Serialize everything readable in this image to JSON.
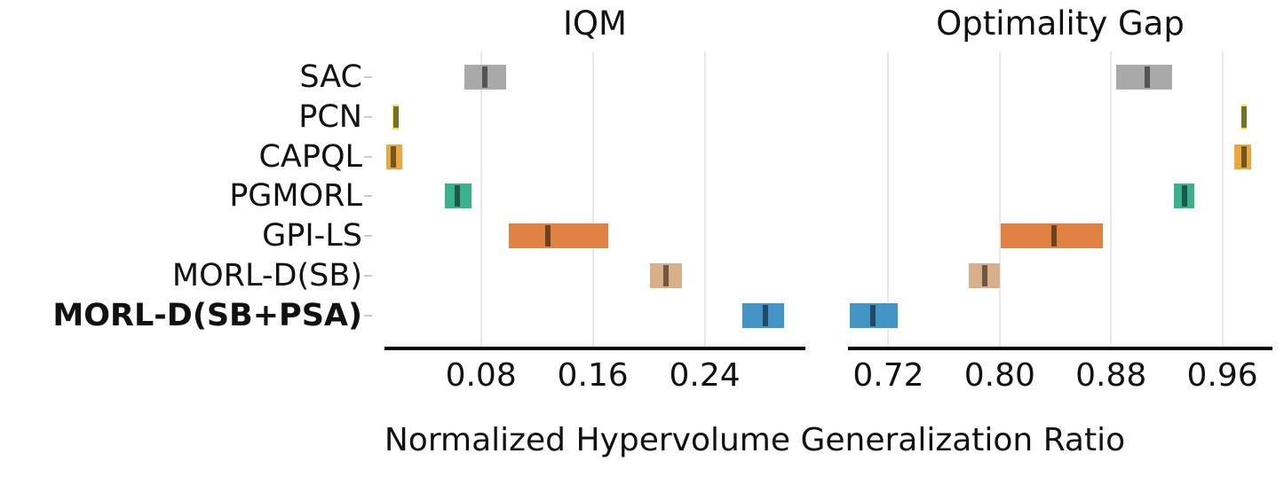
{
  "chart_data": {
    "type": "bar",
    "subtype": "horizontal_interval_estimates",
    "title": "",
    "xlabel": "Normalized Hypervolume Generalization Ratio",
    "grid": true,
    "legend": "none",
    "categories": [
      "SAC",
      "PCN",
      "CAPQL",
      "PGMORL",
      "GPI-LS",
      "MORL-D(SB)",
      "MORL-D(SB+PSA)"
    ],
    "bold_category": "MORL-D(SB+PSA)",
    "colors": {
      "SAC": "#a9a9a9",
      "PCN": "#ece24f",
      "CAPQL": "#e9a83e",
      "PGMORL": "#39b18e",
      "GPI-LS": "#df8244",
      "MORL-D(SB)": "#d9ae8a",
      "MORL-D(SB+PSA)": "#4594c6"
    },
    "median_line_color": "rgba(0,0,0,0.5)",
    "gridline_color": "#e9e9e9",
    "panels": [
      {
        "title": "IQM",
        "xlim": [
          0.011,
          0.312
        ],
        "xticks": [
          0.08,
          0.16,
          0.24
        ],
        "intervals": [
          {
            "algorithm": "SAC",
            "lo": 0.068,
            "mid": 0.083,
            "hi": 0.098
          },
          {
            "algorithm": "PCN",
            "lo": 0.017,
            "mid": 0.019,
            "hi": 0.021
          },
          {
            "algorithm": "CAPQL",
            "lo": 0.012,
            "mid": 0.0175,
            "hi": 0.0235
          },
          {
            "algorithm": "PGMORL",
            "lo": 0.054,
            "mid": 0.063,
            "hi": 0.073
          },
          {
            "algorithm": "GPI-LS",
            "lo": 0.1,
            "mid": 0.128,
            "hi": 0.171
          },
          {
            "algorithm": "MORL-D(SB)",
            "lo": 0.201,
            "mid": 0.212,
            "hi": 0.2235
          },
          {
            "algorithm": "MORL-D(SB+PSA)",
            "lo": 0.267,
            "mid": 0.2835,
            "hi": 0.297
          }
        ]
      },
      {
        "title": "Optimality Gap",
        "xlim": [
          0.691,
          0.996
        ],
        "xticks": [
          0.72,
          0.8,
          0.88,
          0.96
        ],
        "intervals": [
          {
            "algorithm": "SAC",
            "lo": 0.884,
            "mid": 0.906,
            "hi": 0.924
          },
          {
            "algorithm": "PCN",
            "lo": 0.9735,
            "mid": 0.9755,
            "hi": 0.9775
          },
          {
            "algorithm": "CAPQL",
            "lo": 0.9685,
            "mid": 0.9755,
            "hi": 0.981
          },
          {
            "algorithm": "PGMORL",
            "lo": 0.925,
            "mid": 0.933,
            "hi": 0.94
          },
          {
            "algorithm": "GPI-LS",
            "lo": 0.8005,
            "mid": 0.839,
            "hi": 0.874
          },
          {
            "algorithm": "MORL-D(SB)",
            "lo": 0.7775,
            "mid": 0.789,
            "hi": 0.8
          },
          {
            "algorithm": "MORL-D(SB+PSA)",
            "lo": 0.692,
            "mid": 0.709,
            "hi": 0.727
          }
        ]
      }
    ]
  }
}
